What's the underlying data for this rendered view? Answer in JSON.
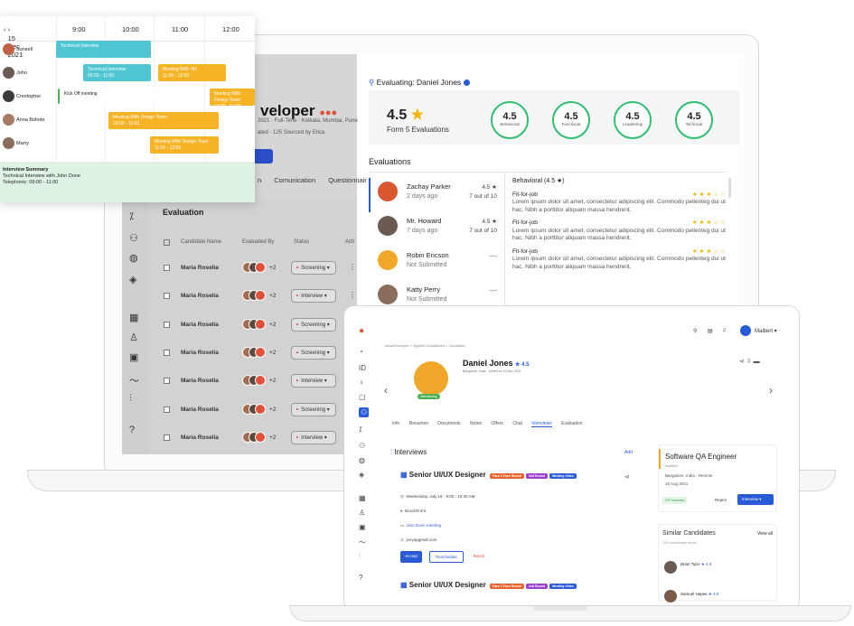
{
  "calendar": {
    "date": "15 Dec 2021",
    "times": [
      "9:00",
      "10:00",
      "11:00",
      "12:00"
    ],
    "people": [
      "Sunsell",
      "John",
      "Crestopher",
      "Anna Bolnde",
      "Marry"
    ],
    "events": [
      {
        "title": "Technical Interview",
        "sub": "09:00 - 10:00",
        "color": "#4fc6d2"
      },
      {
        "title": "Technical Interview",
        "sub": "09:00 - 11:00",
        "color": "#4fc6d2"
      },
      {
        "title": "Meeting With HR",
        "sub": "11:00 - 12:00",
        "color": "#f6b326"
      },
      {
        "title": "Kick Off meeting",
        "sub": "",
        "color": "#ffffff"
      },
      {
        "title": "Meeting With Design Team",
        "sub": "12:00 - 12:30",
        "color": "#f6b326"
      },
      {
        "title": "Meeting With Design Team",
        "sub": "10:00 - 11:00",
        "color": "#f6b326"
      },
      {
        "title": "Meeting With Design Team",
        "sub": "11:00 - 12:00",
        "color": "#f6b326"
      }
    ],
    "summary_title": "Interview Summary",
    "summary_line1": "Technical Interview with John Done",
    "summary_line2": "Telephonic: 09:00 - 11:00"
  },
  "back_app": {
    "job_title": "veloper",
    "meta1": "2021 · Full-Time · Kolkata, Mumbai, Pune",
    "meta2": "ated · 125 Sourced by Erica",
    "tabs": [
      "n",
      "Comunication",
      "Questionnair"
    ],
    "section": "Evaluation",
    "columns": [
      "Candidate Name",
      "Evaluated By",
      "Status",
      "Acti"
    ],
    "rows": [
      {
        "name": "Maria Roselia",
        "more": "+2",
        "status": "Screening"
      },
      {
        "name": "Maria Roselia",
        "more": "+2",
        "status": "Interview"
      },
      {
        "name": "Maria Roselia",
        "more": "+2",
        "status": "Screening"
      },
      {
        "name": "Maria Roselia",
        "more": "+2",
        "status": "Screening"
      },
      {
        "name": "Maria Roselia",
        "more": "+2",
        "status": "Interview"
      },
      {
        "name": "Maria Roselia",
        "more": "+2",
        "status": "Screening"
      },
      {
        "name": "Maria Roselia",
        "more": "+2",
        "status": "Interview"
      }
    ]
  },
  "evaluating": {
    "header": "Evaluating: Daniel Jones",
    "score": "4.5",
    "sub": "Form 5 Evaluations",
    "circles": [
      {
        "value": "4.5",
        "label": "Behavioral"
      },
      {
        "value": "4.5",
        "label": "Functional"
      },
      {
        "value": "4.5",
        "label": "Leadership"
      },
      {
        "value": "4.5",
        "label": "Technical"
      }
    ],
    "list_title": "Evaluations",
    "evaluators": [
      {
        "name": "Zachay Parker",
        "date": "2 days ago",
        "score": "4.5 ★",
        "of": "7 out of 10"
      },
      {
        "name": "Mr. Howard",
        "date": "7 days ago",
        "score": "4.5 ★",
        "of": "7 out of 10"
      },
      {
        "name": "Robin Ericson",
        "date": "Not Submitted",
        "score": "----",
        "of": ""
      },
      {
        "name": "Katty Perry",
        "date": "Not Submitted",
        "score": "----",
        "of": ""
      }
    ],
    "behavioral": "Behavioral (4.5 ★)",
    "fit_label": "Fit-for-job",
    "lorem": "Lorem ipsum dolor sit amet, consectetur adipiscing elit. Commodo pellenteg dui ut hac. Nibh a porttitor aliquam massa hendrerit."
  },
  "front_app": {
    "user": "Maibert",
    "breadcrumb": "Jobs/Developer > Applied Candidates > Candidate",
    "candidate": "Daniel Jones",
    "candidate_score": "★ 4.5",
    "meta": "Bangalore, India · Joined on 15 Dec 2021",
    "tabs": [
      "Info",
      "Resumes",
      "Documents",
      "Notes",
      "Offers",
      "Chat",
      "Interviews",
      "Evaluation"
    ],
    "interviews_title": "Interviews",
    "add": "Add",
    "interview_title": "Senior UI/UX Designer",
    "tags": [
      "Face 2 Face Round",
      "2nd Round",
      "Meeting Video"
    ],
    "when": "Wednesday, July 18 · 9:00 - 10:30 AM",
    "where": "BoschFront",
    "link": "Join Zoom meeting",
    "email": "joeyapgmail.com",
    "buttons": [
      "Accept",
      "Reschedule",
      "Reject"
    ],
    "job": "Software QA Engineer",
    "job_status": "Notified",
    "job_loc": "Bangalore, India · Remote",
    "job_date": "15 Aug 2021",
    "job_badge": "F2F Interview",
    "job_reject": "Reject",
    "job_interview": "Interview",
    "similar_title": "Similar Candidates",
    "view_all": "View all",
    "similar_sub": "12k candidates found",
    "similar": [
      {
        "name": "Brian Tylor",
        "score": "★ 4.5"
      },
      {
        "name": "Samuel Hepes",
        "score": "★ 4.5"
      }
    ]
  }
}
